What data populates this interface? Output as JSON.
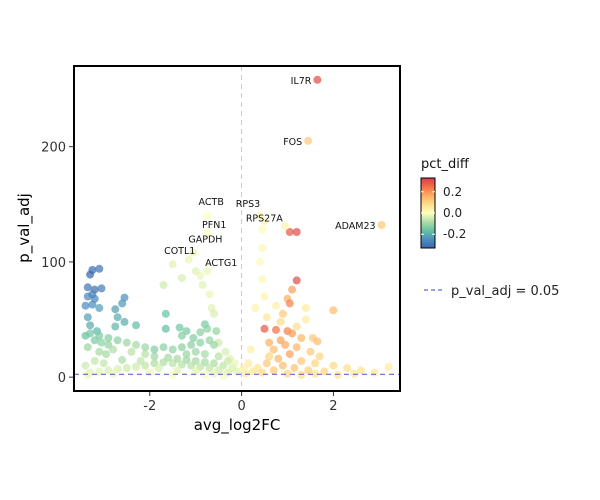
{
  "chart_data": {
    "type": "scatter",
    "title": "",
    "xlabel": "avg_log2FC",
    "ylabel": "p_val_adj",
    "xlim": [
      -3.65,
      3.45
    ],
    "ylim": [
      -12,
      270
    ],
    "x_ticks": [
      -2,
      0,
      2
    ],
    "y_ticks": [
      0,
      100,
      200
    ],
    "x_tick_labels": [
      "-2",
      "0",
      "2"
    ],
    "y_tick_labels": [
      "0",
      "100",
      "200"
    ],
    "grid": false,
    "reference_lines": {
      "vertical_x": 0,
      "horizontal_y": 2.5,
      "horizontal_label": "p_val_adj = 0.05",
      "horizontal_color": "#6666cc"
    },
    "color_scale": {
      "title": "pct_diff",
      "palette": "Spectral",
      "domain": [
        -0.33,
        0.33
      ],
      "ticks": [
        0.2,
        0.0,
        -0.2
      ],
      "tick_labels": [
        "0.2",
        "0.0",
        "-0.2"
      ]
    },
    "legend_position": "right",
    "highlighted_genes": [
      {
        "label": "IL7R",
        "x": 1.65,
        "y": 258,
        "pct_diff": 0.3
      },
      {
        "label": "FOS",
        "x": 1.45,
        "y": 205,
        "pct_diff": 0.12
      },
      {
        "label": "ADAM23",
        "x": 3.05,
        "y": 132,
        "pct_diff": 0.12
      },
      {
        "label": "RPS3",
        "x": 0.4,
        "y": 140,
        "pct_diff": 0.01
      },
      {
        "label": "ACTB",
        "x": -0.75,
        "y": 140,
        "pct_diff": 0.0
      },
      {
        "label": "RPS27A",
        "x": 0.45,
        "y": 128,
        "pct_diff": 0.01
      },
      {
        "label": "PFN1",
        "x": -0.75,
        "y": 125,
        "pct_diff": 0.0
      },
      {
        "label": "GAPDH",
        "x": -1.05,
        "y": 108,
        "pct_diff": -0.02
      },
      {
        "label": "COTL1",
        "x": -1.5,
        "y": 98,
        "pct_diff": -0.03
      },
      {
        "label": "ACTG1",
        "x": -0.75,
        "y": 92,
        "pct_diff": -0.02
      }
    ],
    "points": [
      [
        1.65,
        258,
        0.3
      ],
      [
        1.45,
        205,
        0.12
      ],
      [
        3.05,
        132,
        0.12
      ],
      [
        1.05,
        126,
        0.28
      ],
      [
        1.2,
        126,
        0.3
      ],
      [
        0.95,
        131,
        0.03
      ],
      [
        1.2,
        84,
        0.3
      ],
      [
        1.1,
        76,
        0.18
      ],
      [
        1.0,
        68,
        0.16
      ],
      [
        1.05,
        64,
        0.22
      ],
      [
        2.0,
        58,
        0.14
      ],
      [
        0.9,
        55,
        0.12
      ],
      [
        1.4,
        60,
        0.05
      ],
      [
        0.5,
        42,
        0.28
      ],
      [
        0.75,
        41,
        0.24
      ],
      [
        1.0,
        40,
        0.22
      ],
      [
        1.1,
        38,
        0.19
      ],
      [
        1.3,
        34,
        0.15
      ],
      [
        1.55,
        34,
        0.12
      ],
      [
        1.65,
        31,
        0.14
      ],
      [
        0.85,
        32,
        0.18
      ],
      [
        0.6,
        30,
        0.16
      ],
      [
        0.95,
        28,
        0.17
      ],
      [
        1.2,
        26,
        0.15
      ],
      [
        1.5,
        22,
        0.12
      ],
      [
        1.7,
        18,
        0.1
      ],
      [
        0.7,
        24,
        0.14
      ],
      [
        1.05,
        20,
        0.18
      ],
      [
        0.8,
        16,
        0.15
      ],
      [
        1.3,
        14,
        0.12
      ],
      [
        1.6,
        12,
        0.1
      ],
      [
        2.0,
        10,
        0.09
      ],
      [
        2.3,
        8,
        0.08
      ],
      [
        2.6,
        6,
        0.07
      ],
      [
        2.9,
        4,
        0.06
      ],
      [
        3.2,
        9,
        0.05
      ],
      [
        0.55,
        12,
        0.12
      ],
      [
        0.9,
        10,
        0.14
      ],
      [
        1.15,
        8,
        0.13
      ],
      [
        0.7,
        6,
        0.12
      ],
      [
        1.45,
        6,
        0.11
      ],
      [
        1.8,
        5,
        0.1
      ],
      [
        0.45,
        4,
        0.09
      ],
      [
        1.0,
        3,
        0.1
      ],
      [
        1.3,
        2,
        0.09
      ],
      [
        1.6,
        3,
        0.08
      ],
      [
        2.1,
        2,
        0.07
      ],
      [
        2.45,
        3,
        0.06
      ],
      [
        0.35,
        8,
        0.07
      ],
      [
        0.6,
        18,
        0.1
      ],
      [
        1.2,
        44,
        0.08
      ],
      [
        0.85,
        48,
        0.09
      ],
      [
        0.55,
        52,
        0.06
      ],
      [
        1.4,
        50,
        0.05
      ],
      [
        0.75,
        62,
        0.04
      ],
      [
        0.5,
        70,
        0.03
      ],
      [
        0.45,
        85,
        0.02
      ],
      [
        0.4,
        100,
        0.01
      ],
      [
        0.45,
        112,
        0.02
      ],
      [
        0.5,
        135,
        0.01
      ],
      [
        0.4,
        140,
        0.01
      ],
      [
        0.45,
        128,
        0.01
      ],
      [
        0.3,
        60,
        0.03
      ],
      [
        0.2,
        24,
        0.04
      ],
      [
        0.15,
        12,
        0.05
      ],
      [
        0.25,
        5,
        0.06
      ],
      [
        0.1,
        3,
        0.05
      ],
      [
        0.05,
        8,
        0.04
      ],
      [
        -3.25,
        93,
        -0.32
      ],
      [
        -3.1,
        94,
        -0.3
      ],
      [
        -3.3,
        89,
        -0.33
      ],
      [
        -3.35,
        78,
        -0.29
      ],
      [
        -3.2,
        76,
        -0.3
      ],
      [
        -3.05,
        77,
        -0.28
      ],
      [
        -3.25,
        72,
        -0.27
      ],
      [
        -3.35,
        70,
        -0.26
      ],
      [
        -3.2,
        68,
        -0.26
      ],
      [
        -3.4,
        62,
        -0.25
      ],
      [
        -3.25,
        63,
        -0.25
      ],
      [
        -3.1,
        60,
        -0.22
      ],
      [
        -2.55,
        69,
        -0.24
      ],
      [
        -2.6,
        64,
        -0.23
      ],
      [
        -2.75,
        59,
        -0.22
      ],
      [
        -2.7,
        52,
        -0.2
      ],
      [
        -2.55,
        48,
        -0.2
      ],
      [
        -2.75,
        44,
        -0.18
      ],
      [
        -2.3,
        45,
        -0.17
      ],
      [
        -1.7,
        80,
        -0.05
      ],
      [
        -1.65,
        55,
        -0.16
      ],
      [
        -1.35,
        43,
        -0.15
      ],
      [
        -1.2,
        40,
        -0.14
      ],
      [
        -1.3,
        36,
        -0.13
      ],
      [
        -1.05,
        34,
        -0.13
      ],
      [
        -0.8,
        46,
        -0.14
      ],
      [
        -0.75,
        42,
        -0.12
      ],
      [
        -0.55,
        40,
        -0.11
      ],
      [
        -0.9,
        39,
        -0.12
      ],
      [
        -1.65,
        42,
        -0.17
      ],
      [
        -3.35,
        52,
        -0.22
      ],
      [
        -3.3,
        45,
        -0.2
      ],
      [
        -3.15,
        40,
        -0.18
      ],
      [
        -3.4,
        36,
        -0.16
      ],
      [
        -3.2,
        32,
        -0.14
      ],
      [
        -3.05,
        30,
        -0.12
      ],
      [
        -2.9,
        28,
        -0.11
      ],
      [
        -3.35,
        26,
        -0.1
      ],
      [
        -3.1,
        22,
        -0.09
      ],
      [
        -2.95,
        20,
        -0.09
      ],
      [
        -2.8,
        24,
        -0.08
      ],
      [
        -2.4,
        22,
        -0.07
      ],
      [
        -2.1,
        20,
        -0.07
      ],
      [
        -1.9,
        18,
        -0.1
      ],
      [
        -1.6,
        17,
        -0.09
      ],
      [
        -1.4,
        16,
        -0.09
      ],
      [
        -1.2,
        15,
        -0.1
      ],
      [
        -1.0,
        14,
        -0.09
      ],
      [
        -0.8,
        13,
        -0.09
      ],
      [
        -0.6,
        12,
        -0.08
      ],
      [
        -0.4,
        10,
        -0.06
      ],
      [
        -0.2,
        8,
        -0.04
      ],
      [
        -0.1,
        5,
        -0.03
      ],
      [
        -0.3,
        4,
        -0.04
      ],
      [
        -0.5,
        6,
        -0.05
      ],
      [
        -0.7,
        8,
        -0.06
      ],
      [
        -0.9,
        9,
        -0.06
      ],
      [
        -1.1,
        10,
        -0.07
      ],
      [
        -1.3,
        11,
        -0.07
      ],
      [
        -1.5,
        12,
        -0.07
      ],
      [
        -1.7,
        13,
        -0.08
      ],
      [
        -1.9,
        12,
        -0.08
      ],
      [
        -2.1,
        10,
        -0.06
      ],
      [
        -2.3,
        9,
        -0.05
      ],
      [
        -2.5,
        8,
        -0.05
      ],
      [
        -2.7,
        7,
        -0.04
      ],
      [
        -2.9,
        6,
        -0.04
      ],
      [
        -3.1,
        5,
        -0.03
      ],
      [
        -3.3,
        4,
        -0.03
      ],
      [
        -3.4,
        10,
        -0.05
      ],
      [
        -3.2,
        14,
        -0.06
      ],
      [
        -3.0,
        12,
        -0.06
      ],
      [
        -2.6,
        15,
        -0.08
      ],
      [
        -2.2,
        14,
        -0.06
      ],
      [
        -1.8,
        8,
        -0.04
      ],
      [
        -1.4,
        6,
        -0.03
      ],
      [
        -1.0,
        5,
        -0.03
      ],
      [
        -0.6,
        3,
        -0.02
      ],
      [
        -2.0,
        4,
        -0.02
      ],
      [
        -2.8,
        3,
        -0.02
      ],
      [
        -3.35,
        2,
        -0.02
      ],
      [
        -1.5,
        2,
        -0.01
      ],
      [
        -0.8,
        2,
        -0.01
      ],
      [
        -0.4,
        1,
        -0.01
      ],
      [
        -0.75,
        140,
        0.0
      ],
      [
        -0.75,
        125,
        0.0
      ],
      [
        -1.05,
        108,
        -0.02
      ],
      [
        -1.5,
        98,
        -0.03
      ],
      [
        -0.75,
        92,
        -0.02
      ],
      [
        -0.9,
        88,
        -0.02
      ],
      [
        -0.85,
        80,
        -0.03
      ],
      [
        -0.7,
        72,
        -0.02
      ],
      [
        -0.65,
        60,
        -0.03
      ],
      [
        -0.6,
        55,
        -0.04
      ],
      [
        -1.15,
        102,
        -0.02
      ],
      [
        -1.0,
        92,
        -0.03
      ],
      [
        -1.3,
        86,
        -0.04
      ],
      [
        -0.5,
        30,
        -0.05
      ],
      [
        -0.35,
        22,
        -0.04
      ],
      [
        -0.25,
        16,
        -0.03
      ],
      [
        -0.15,
        12,
        -0.02
      ],
      [
        -0.6,
        28,
        -0.1
      ],
      [
        -0.7,
        32,
        -0.11
      ],
      [
        -0.9,
        30,
        -0.12
      ],
      [
        -1.1,
        28,
        -0.12
      ],
      [
        -1.3,
        26,
        -0.12
      ],
      [
        -1.5,
        24,
        -0.11
      ],
      [
        -1.7,
        26,
        -0.12
      ],
      [
        -1.9,
        24,
        -0.13
      ],
      [
        -2.1,
        26,
        -0.1
      ],
      [
        -2.3,
        28,
        -0.09
      ],
      [
        -2.5,
        30,
        -0.1
      ],
      [
        -2.7,
        32,
        -0.12
      ],
      [
        -2.9,
        34,
        -0.13
      ],
      [
        -3.1,
        36,
        -0.14
      ],
      [
        -3.3,
        38,
        -0.15
      ],
      [
        -1.0,
        22,
        -0.1
      ],
      [
        -1.2,
        20,
        -0.1
      ],
      [
        -0.8,
        20,
        -0.09
      ],
      [
        -0.5,
        18,
        -0.07
      ],
      [
        -0.3,
        14,
        -0.05
      ]
    ]
  }
}
